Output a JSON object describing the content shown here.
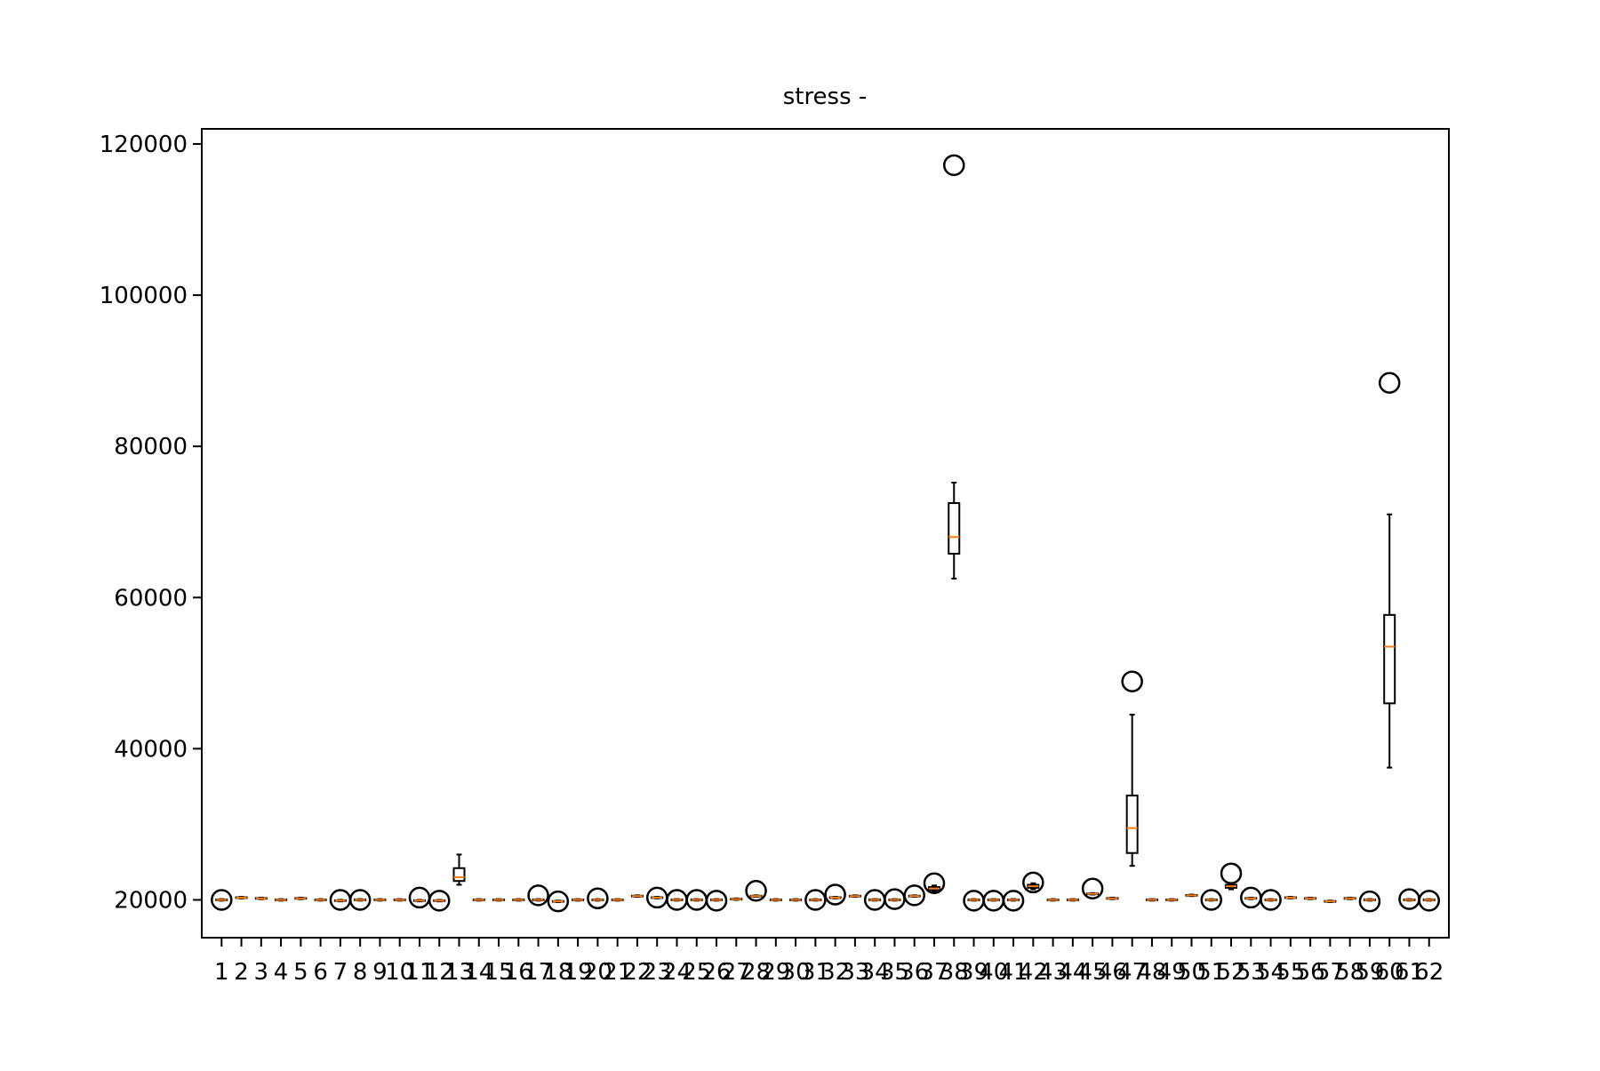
{
  "chart_data": {
    "type": "box",
    "title": "stress -",
    "xlabel": "",
    "ylabel": "",
    "ylim": [
      15000,
      122000
    ],
    "yticks": [
      20000,
      40000,
      60000,
      80000,
      100000,
      120000
    ],
    "ytick_labels": [
      "20000",
      "40000",
      "60000",
      "80000",
      "100000",
      "120000"
    ],
    "grid": false,
    "colors": {
      "box": "#000000",
      "median": "#ff7f0e",
      "outlier": "#000000"
    },
    "categories": [
      "1",
      "2",
      "3",
      "4",
      "5",
      "6",
      "7",
      "8",
      "9",
      "10",
      "11",
      "12",
      "13",
      "14",
      "15",
      "16",
      "17",
      "18",
      "19",
      "20",
      "21",
      "22",
      "23",
      "24",
      "25",
      "26",
      "27",
      "28",
      "29",
      "30",
      "31",
      "32",
      "33",
      "34",
      "35",
      "36",
      "37",
      "38",
      "39",
      "40",
      "41",
      "42",
      "43",
      "44",
      "45",
      "46",
      "47",
      "48",
      "49",
      "50",
      "51",
      "52",
      "53",
      "54",
      "55",
      "56",
      "57",
      "58",
      "59",
      "60",
      "61",
      "62"
    ],
    "boxes": [
      {
        "median": 20000,
        "q1": 19950,
        "q3": 20050,
        "wl": 19900,
        "wh": 20100,
        "outliers": [
          20000
        ]
      },
      {
        "median": 20300,
        "q1": 20250,
        "q3": 20350,
        "wl": 20200,
        "wh": 20400,
        "outliers": []
      },
      {
        "median": 20200,
        "q1": 20150,
        "q3": 20250,
        "wl": 20100,
        "wh": 20300,
        "outliers": []
      },
      {
        "median": 20000,
        "q1": 19950,
        "q3": 20050,
        "wl": 19900,
        "wh": 20100,
        "outliers": []
      },
      {
        "median": 20200,
        "q1": 20150,
        "q3": 20250,
        "wl": 20100,
        "wh": 20300,
        "outliers": []
      },
      {
        "median": 20000,
        "q1": 19950,
        "q3": 20050,
        "wl": 19900,
        "wh": 20100,
        "outliers": []
      },
      {
        "median": 19900,
        "q1": 19850,
        "q3": 19950,
        "wl": 19800,
        "wh": 20000,
        "outliers": [
          20000
        ]
      },
      {
        "median": 20000,
        "q1": 19950,
        "q3": 20050,
        "wl": 19900,
        "wh": 20100,
        "outliers": [
          20000
        ]
      },
      {
        "median": 20000,
        "q1": 19950,
        "q3": 20050,
        "wl": 19900,
        "wh": 20100,
        "outliers": []
      },
      {
        "median": 20000,
        "q1": 19950,
        "q3": 20050,
        "wl": 19900,
        "wh": 20100,
        "outliers": []
      },
      {
        "median": 19900,
        "q1": 19850,
        "q3": 19950,
        "wl": 19800,
        "wh": 20000,
        "outliers": [
          20300
        ]
      },
      {
        "median": 19900,
        "q1": 19850,
        "q3": 19950,
        "wl": 19800,
        "wh": 20000,
        "outliers": [
          19900
        ]
      },
      {
        "median": 23000,
        "q1": 22500,
        "q3": 24200,
        "wl": 22000,
        "wh": 26000,
        "outliers": []
      },
      {
        "median": 20000,
        "q1": 19950,
        "q3": 20050,
        "wl": 19900,
        "wh": 20100,
        "outliers": []
      },
      {
        "median": 20000,
        "q1": 19950,
        "q3": 20050,
        "wl": 19900,
        "wh": 20100,
        "outliers": []
      },
      {
        "median": 20000,
        "q1": 19950,
        "q3": 20050,
        "wl": 19900,
        "wh": 20100,
        "outliers": []
      },
      {
        "median": 20000,
        "q1": 19950,
        "q3": 20050,
        "wl": 19900,
        "wh": 20100,
        "outliers": [
          20600
        ]
      },
      {
        "median": 19800,
        "q1": 19750,
        "q3": 19850,
        "wl": 19700,
        "wh": 19900,
        "outliers": [
          19800
        ]
      },
      {
        "median": 20000,
        "q1": 19950,
        "q3": 20050,
        "wl": 19900,
        "wh": 20100,
        "outliers": []
      },
      {
        "median": 20000,
        "q1": 19950,
        "q3": 20050,
        "wl": 19900,
        "wh": 20100,
        "outliers": [
          20200
        ]
      },
      {
        "median": 20000,
        "q1": 19950,
        "q3": 20050,
        "wl": 19900,
        "wh": 20100,
        "outliers": []
      },
      {
        "median": 20500,
        "q1": 20450,
        "q3": 20550,
        "wl": 20400,
        "wh": 20600,
        "outliers": []
      },
      {
        "median": 20300,
        "q1": 20250,
        "q3": 20350,
        "wl": 20200,
        "wh": 20400,
        "outliers": [
          20300
        ]
      },
      {
        "median": 20000,
        "q1": 19950,
        "q3": 20050,
        "wl": 19900,
        "wh": 20100,
        "outliers": [
          20000
        ]
      },
      {
        "median": 20000,
        "q1": 19950,
        "q3": 20050,
        "wl": 19900,
        "wh": 20100,
        "outliers": [
          20000
        ]
      },
      {
        "median": 20000,
        "q1": 19950,
        "q3": 20050,
        "wl": 19900,
        "wh": 20100,
        "outliers": [
          19900
        ]
      },
      {
        "median": 20100,
        "q1": 20050,
        "q3": 20150,
        "wl": 20000,
        "wh": 20200,
        "outliers": []
      },
      {
        "median": 20500,
        "q1": 20450,
        "q3": 20550,
        "wl": 20400,
        "wh": 20600,
        "outliers": [
          21200
        ]
      },
      {
        "median": 20000,
        "q1": 19950,
        "q3": 20050,
        "wl": 19900,
        "wh": 20100,
        "outliers": []
      },
      {
        "median": 20000,
        "q1": 19950,
        "q3": 20050,
        "wl": 19900,
        "wh": 20100,
        "outliers": []
      },
      {
        "median": 20000,
        "q1": 19950,
        "q3": 20050,
        "wl": 19900,
        "wh": 20100,
        "outliers": [
          20000
        ]
      },
      {
        "median": 20300,
        "q1": 20250,
        "q3": 20350,
        "wl": 20200,
        "wh": 20400,
        "outliers": [
          20700
        ]
      },
      {
        "median": 20500,
        "q1": 20450,
        "q3": 20550,
        "wl": 20400,
        "wh": 20600,
        "outliers": []
      },
      {
        "median": 20000,
        "q1": 19950,
        "q3": 20050,
        "wl": 19900,
        "wh": 20100,
        "outliers": [
          20000
        ]
      },
      {
        "median": 20000,
        "q1": 19950,
        "q3": 20050,
        "wl": 19900,
        "wh": 20100,
        "outliers": [
          20100
        ]
      },
      {
        "median": 20500,
        "q1": 20450,
        "q3": 20550,
        "wl": 20400,
        "wh": 20600,
        "outliers": [
          20600
        ]
      },
      {
        "median": 21500,
        "q1": 21300,
        "q3": 21700,
        "wl": 21100,
        "wh": 21900,
        "outliers": [
          22200
        ]
      },
      {
        "median": 68000,
        "q1": 65800,
        "q3": 72500,
        "wl": 62500,
        "wh": 75200,
        "outliers": [
          117200
        ]
      },
      {
        "median": 20000,
        "q1": 19950,
        "q3": 20050,
        "wl": 19900,
        "wh": 20100,
        "outliers": [
          19900
        ]
      },
      {
        "median": 20000,
        "q1": 19950,
        "q3": 20050,
        "wl": 19900,
        "wh": 20100,
        "outliers": [
          19900
        ]
      },
      {
        "median": 20000,
        "q1": 19950,
        "q3": 20050,
        "wl": 19900,
        "wh": 20100,
        "outliers": [
          19900
        ]
      },
      {
        "median": 21800,
        "q1": 21600,
        "q3": 22000,
        "wl": 21400,
        "wh": 22200,
        "outliers": [
          22300
        ]
      },
      {
        "median": 20000,
        "q1": 19950,
        "q3": 20050,
        "wl": 19900,
        "wh": 20100,
        "outliers": []
      },
      {
        "median": 20000,
        "q1": 19950,
        "q3": 20050,
        "wl": 19900,
        "wh": 20100,
        "outliers": []
      },
      {
        "median": 20800,
        "q1": 20750,
        "q3": 20850,
        "wl": 20700,
        "wh": 20900,
        "outliers": [
          21500
        ]
      },
      {
        "median": 20200,
        "q1": 20150,
        "q3": 20250,
        "wl": 20100,
        "wh": 20300,
        "outliers": []
      },
      {
        "median": 29500,
        "q1": 26200,
        "q3": 33800,
        "wl": 24500,
        "wh": 44500,
        "outliers": [
          48900
        ]
      },
      {
        "median": 20000,
        "q1": 19950,
        "q3": 20050,
        "wl": 19900,
        "wh": 20100,
        "outliers": []
      },
      {
        "median": 20000,
        "q1": 19950,
        "q3": 20050,
        "wl": 19900,
        "wh": 20100,
        "outliers": []
      },
      {
        "median": 20600,
        "q1": 20550,
        "q3": 20650,
        "wl": 20500,
        "wh": 20700,
        "outliers": []
      },
      {
        "median": 20000,
        "q1": 19950,
        "q3": 20050,
        "wl": 19900,
        "wh": 20100,
        "outliers": [
          20000
        ]
      },
      {
        "median": 21800,
        "q1": 21600,
        "q3": 22000,
        "wl": 21400,
        "wh": 22200,
        "outliers": [
          23500
        ]
      },
      {
        "median": 20200,
        "q1": 20150,
        "q3": 20250,
        "wl": 20100,
        "wh": 20300,
        "outliers": [
          20300
        ]
      },
      {
        "median": 20000,
        "q1": 19950,
        "q3": 20050,
        "wl": 19900,
        "wh": 20100,
        "outliers": [
          20000
        ]
      },
      {
        "median": 20300,
        "q1": 20250,
        "q3": 20350,
        "wl": 20200,
        "wh": 20400,
        "outliers": []
      },
      {
        "median": 20200,
        "q1": 20150,
        "q3": 20250,
        "wl": 20100,
        "wh": 20300,
        "outliers": []
      },
      {
        "median": 19800,
        "q1": 19750,
        "q3": 19850,
        "wl": 19700,
        "wh": 19900,
        "outliers": []
      },
      {
        "median": 20200,
        "q1": 20150,
        "q3": 20250,
        "wl": 20100,
        "wh": 20300,
        "outliers": []
      },
      {
        "median": 20000,
        "q1": 19950,
        "q3": 20050,
        "wl": 19900,
        "wh": 20100,
        "outliers": [
          19800
        ]
      },
      {
        "median": 53500,
        "q1": 46000,
        "q3": 57700,
        "wl": 37500,
        "wh": 71000,
        "outliers": [
          88400
        ]
      },
      {
        "median": 20000,
        "q1": 19950,
        "q3": 20050,
        "wl": 19900,
        "wh": 20100,
        "outliers": [
          20100
        ]
      },
      {
        "median": 20000,
        "q1": 19950,
        "q3": 20050,
        "wl": 19900,
        "wh": 20100,
        "outliers": [
          19900
        ]
      }
    ]
  }
}
